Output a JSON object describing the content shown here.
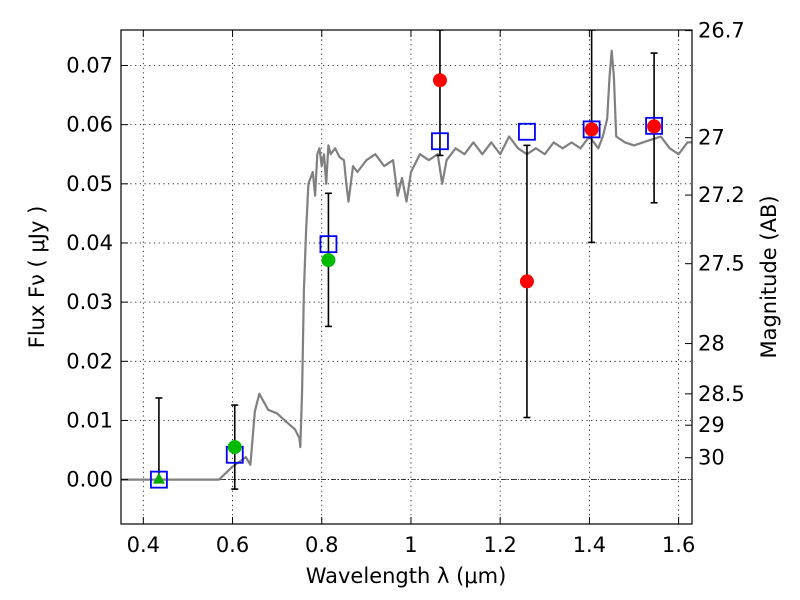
{
  "chart_data": {
    "type": "scatter",
    "xlabel": "Wavelength  λ (μm)",
    "ylabel": "Flux  Fν  ( μJy )",
    "ylabel_right": "Magnitude (AB)",
    "xlim": [
      0.35,
      1.63
    ],
    "ylim": [
      -0.0075,
      0.076
    ],
    "grid": true,
    "x_ticks": [
      0.4,
      0.6,
      0.8,
      1.0,
      1.2,
      1.4,
      1.6
    ],
    "x_tick_labels": [
      "0.4",
      "0.6",
      "0.8",
      "1",
      "1.2",
      "1.4",
      "1.6"
    ],
    "y_ticks": [
      0.0,
      0.01,
      0.02,
      0.03,
      0.04,
      0.05,
      0.06,
      0.07
    ],
    "y_tick_labels": [
      "0.00",
      "0.01",
      "0.02",
      "0.03",
      "0.04",
      "0.05",
      "0.06",
      "0.07"
    ],
    "right_ticks": [
      {
        "label": "26.7",
        "flux": 0.0759
      },
      {
        "label": "27",
        "flux": 0.0578
      },
      {
        "label": "27.2",
        "flux": 0.0481
      },
      {
        "label": "27.5",
        "flux": 0.0365
      },
      {
        "label": "28",
        "flux": 0.023
      },
      {
        "label": "28.5",
        "flux": 0.0145
      },
      {
        "label": "29",
        "flux": 0.0092
      },
      {
        "label": "30",
        "flux": 0.0037
      }
    ],
    "model_sed": {
      "color": "#808080",
      "x": [
        0.35,
        0.57,
        0.6,
        0.63,
        0.64,
        0.65,
        0.66,
        0.68,
        0.7,
        0.72,
        0.74,
        0.75,
        0.752,
        0.756,
        0.76,
        0.765,
        0.77,
        0.78,
        0.785,
        0.79,
        0.795,
        0.8,
        0.805,
        0.81,
        0.815,
        0.82,
        0.83,
        0.84,
        0.85,
        0.855,
        0.86,
        0.87,
        0.88,
        0.9,
        0.92,
        0.94,
        0.96,
        0.97,
        0.98,
        0.99,
        1.0,
        1.02,
        1.04,
        1.06,
        1.07,
        1.08,
        1.1,
        1.12,
        1.14,
        1.16,
        1.18,
        1.2,
        1.22,
        1.24,
        1.26,
        1.28,
        1.3,
        1.32,
        1.34,
        1.36,
        1.38,
        1.4,
        1.42,
        1.43,
        1.44,
        1.445,
        1.45,
        1.455,
        1.46,
        1.48,
        1.5,
        1.52,
        1.54,
        1.56,
        1.58,
        1.6,
        1.62,
        1.63
      ],
      "y": [
        0.0,
        0.0,
        0.0022,
        0.0038,
        0.0025,
        0.0115,
        0.0145,
        0.0118,
        0.0112,
        0.0098,
        0.0085,
        0.007,
        0.0055,
        0.015,
        0.032,
        0.042,
        0.05,
        0.052,
        0.048,
        0.055,
        0.056,
        0.053,
        0.055,
        0.05,
        0.0565,
        0.055,
        0.056,
        0.0545,
        0.054,
        0.05,
        0.047,
        0.053,
        0.052,
        0.054,
        0.055,
        0.053,
        0.054,
        0.048,
        0.051,
        0.047,
        0.052,
        0.055,
        0.054,
        0.055,
        0.05,
        0.054,
        0.056,
        0.055,
        0.057,
        0.055,
        0.057,
        0.055,
        0.058,
        0.056,
        0.055,
        0.056,
        0.055,
        0.057,
        0.056,
        0.057,
        0.056,
        0.058,
        0.056,
        0.058,
        0.061,
        0.068,
        0.0725,
        0.068,
        0.058,
        0.057,
        0.0565,
        0.057,
        0.0575,
        0.058,
        0.056,
        0.055,
        0.057,
        0.057
      ]
    },
    "model_photometry": {
      "name": "model",
      "marker": "open-square",
      "color": "#0000ff",
      "points": [
        {
          "x": 0.435,
          "y": 0.0
        },
        {
          "x": 0.605,
          "y": 0.0042
        },
        {
          "x": 0.815,
          "y": 0.0398
        },
        {
          "x": 1.065,
          "y": 0.0572
        },
        {
          "x": 1.26,
          "y": 0.0588
        },
        {
          "x": 1.405,
          "y": 0.0592
        },
        {
          "x": 1.545,
          "y": 0.0598
        }
      ]
    },
    "observed": [
      {
        "marker": "triangle",
        "color": "#00aa00",
        "x": 0.435,
        "y": 0.0,
        "err_low": 0.0,
        "err_high": 0.0138
      },
      {
        "marker": "circle",
        "color": "#00bb00",
        "x": 0.605,
        "y": 0.0055,
        "err_low": -0.0016,
        "err_high": 0.0126
      },
      {
        "marker": "circle",
        "color": "#00bb00",
        "x": 0.815,
        "y": 0.0371,
        "err_low": 0.0259,
        "err_high": 0.0484
      },
      {
        "marker": "circle",
        "color": "#ff0000",
        "x": 1.065,
        "y": 0.0675,
        "err_low": 0.0548,
        "err_high": 0.076
      },
      {
        "marker": "circle",
        "color": "#ff0000",
        "x": 1.26,
        "y": 0.0335,
        "err_low": 0.0105,
        "err_high": 0.0565
      },
      {
        "marker": "circle",
        "color": "#ff0000",
        "x": 1.405,
        "y": 0.0592,
        "err_low": 0.0401,
        "err_high": 0.076
      },
      {
        "marker": "circle",
        "color": "#ff0000",
        "x": 1.545,
        "y": 0.0597,
        "err_low": 0.0468,
        "err_high": 0.0721
      }
    ]
  }
}
